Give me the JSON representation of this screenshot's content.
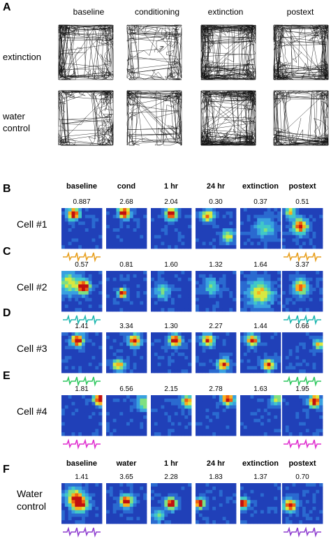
{
  "panel_a": {
    "letter": "A",
    "columns": [
      "baseline",
      "conditioning",
      "extinction",
      "postext"
    ],
    "rows": [
      {
        "label": "extinction",
        "density": [
          0.55,
          0.3,
          1.0,
          0.75
        ]
      },
      {
        "label": "water\ncontrol",
        "density": [
          0.5,
          0.35,
          1.0,
          0.55
        ]
      }
    ]
  },
  "panel_b_to_e_header": [
    "baseline",
    "cond",
    "1 hr",
    "24 hr",
    "extinction",
    "postext"
  ],
  "cells": [
    {
      "letter": "B",
      "label": "Cell #1",
      "rates": [
        "0.887",
        "2.68",
        "2.04",
        "0.30",
        "0.37",
        "0.51"
      ],
      "waveform_color": "#e8a020",
      "waveform_columns": [
        0,
        5
      ]
    },
    {
      "letter": "C",
      "label": "Cell #2",
      "rates": [
        "0.57",
        "0.81",
        "1.60",
        "1.32",
        "1.64",
        "3.37"
      ],
      "waveform_color": "#20b8b0",
      "waveform_columns": [
        0,
        5
      ]
    },
    {
      "letter": "D",
      "label": "Cell #3",
      "rates": [
        "1.41",
        "3.34",
        "1.30",
        "2.27",
        "1.44",
        "0.66"
      ],
      "waveform_color": "#30c860",
      "waveform_columns": [
        0,
        5
      ]
    },
    {
      "letter": "E",
      "label": "Cell #4",
      "rates": [
        "1.81",
        "6.56",
        "2.15",
        "2.78",
        "1.63",
        "1.95"
      ],
      "waveform_color": "#e030d0",
      "waveform_columns": [
        0,
        5
      ]
    }
  ],
  "panel_f": {
    "letter": "F",
    "label": "Water\ncontrol",
    "header": [
      "baseline",
      "water",
      "1 hr",
      "24 hr",
      "extinction",
      "postext"
    ],
    "rates": [
      "1.41",
      "3.65",
      "2.28",
      "1.83",
      "1.37",
      "0.70"
    ],
    "waveform_color": "#9040d0",
    "waveform_columns": [
      0,
      5
    ]
  }
}
